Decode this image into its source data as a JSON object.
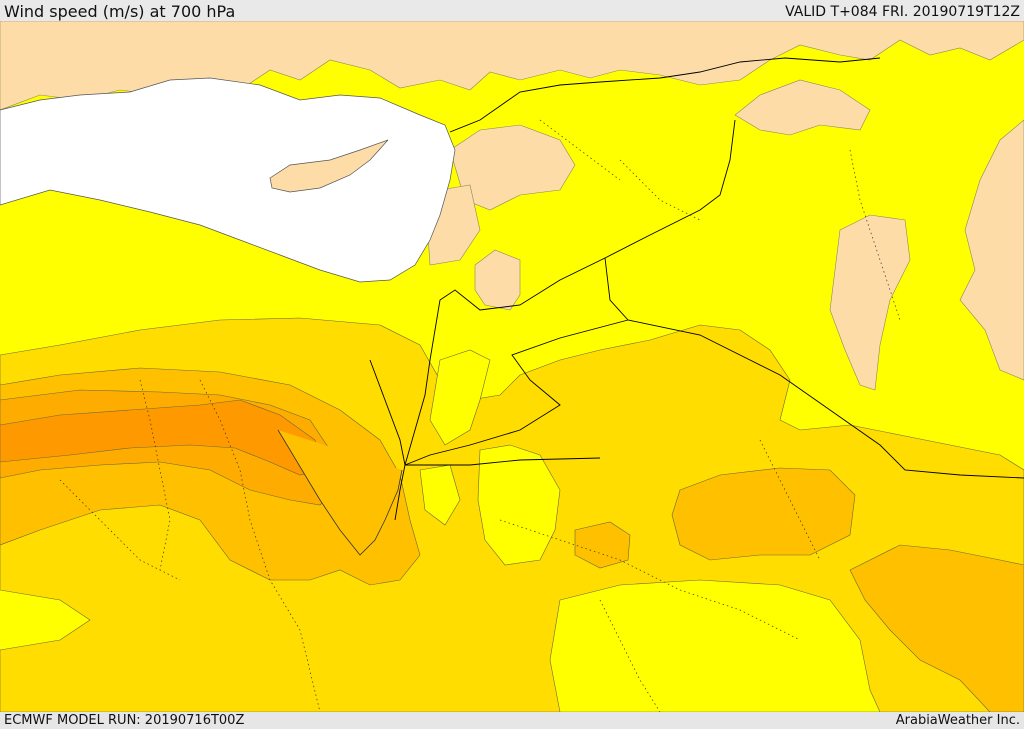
{
  "header": {
    "title": "Wind speed (m/s) at 700 hPa",
    "valid": "VALID T+084 FRI. 20190719T12Z"
  },
  "footer": {
    "model_run": "ECMWF MODEL RUN: 20190716T00Z",
    "credit": "ArabiaWeather Inc."
  },
  "colors": {
    "sea": "#ffffff",
    "land_calm": "#fddca8",
    "speed_band_1": "#ffff00",
    "speed_band_2": "#ffdd00",
    "speed_band_3": "#ffc000",
    "speed_band_4": "#ffac00",
    "speed_band_5": "#ff9900",
    "border": "#000000"
  }
}
